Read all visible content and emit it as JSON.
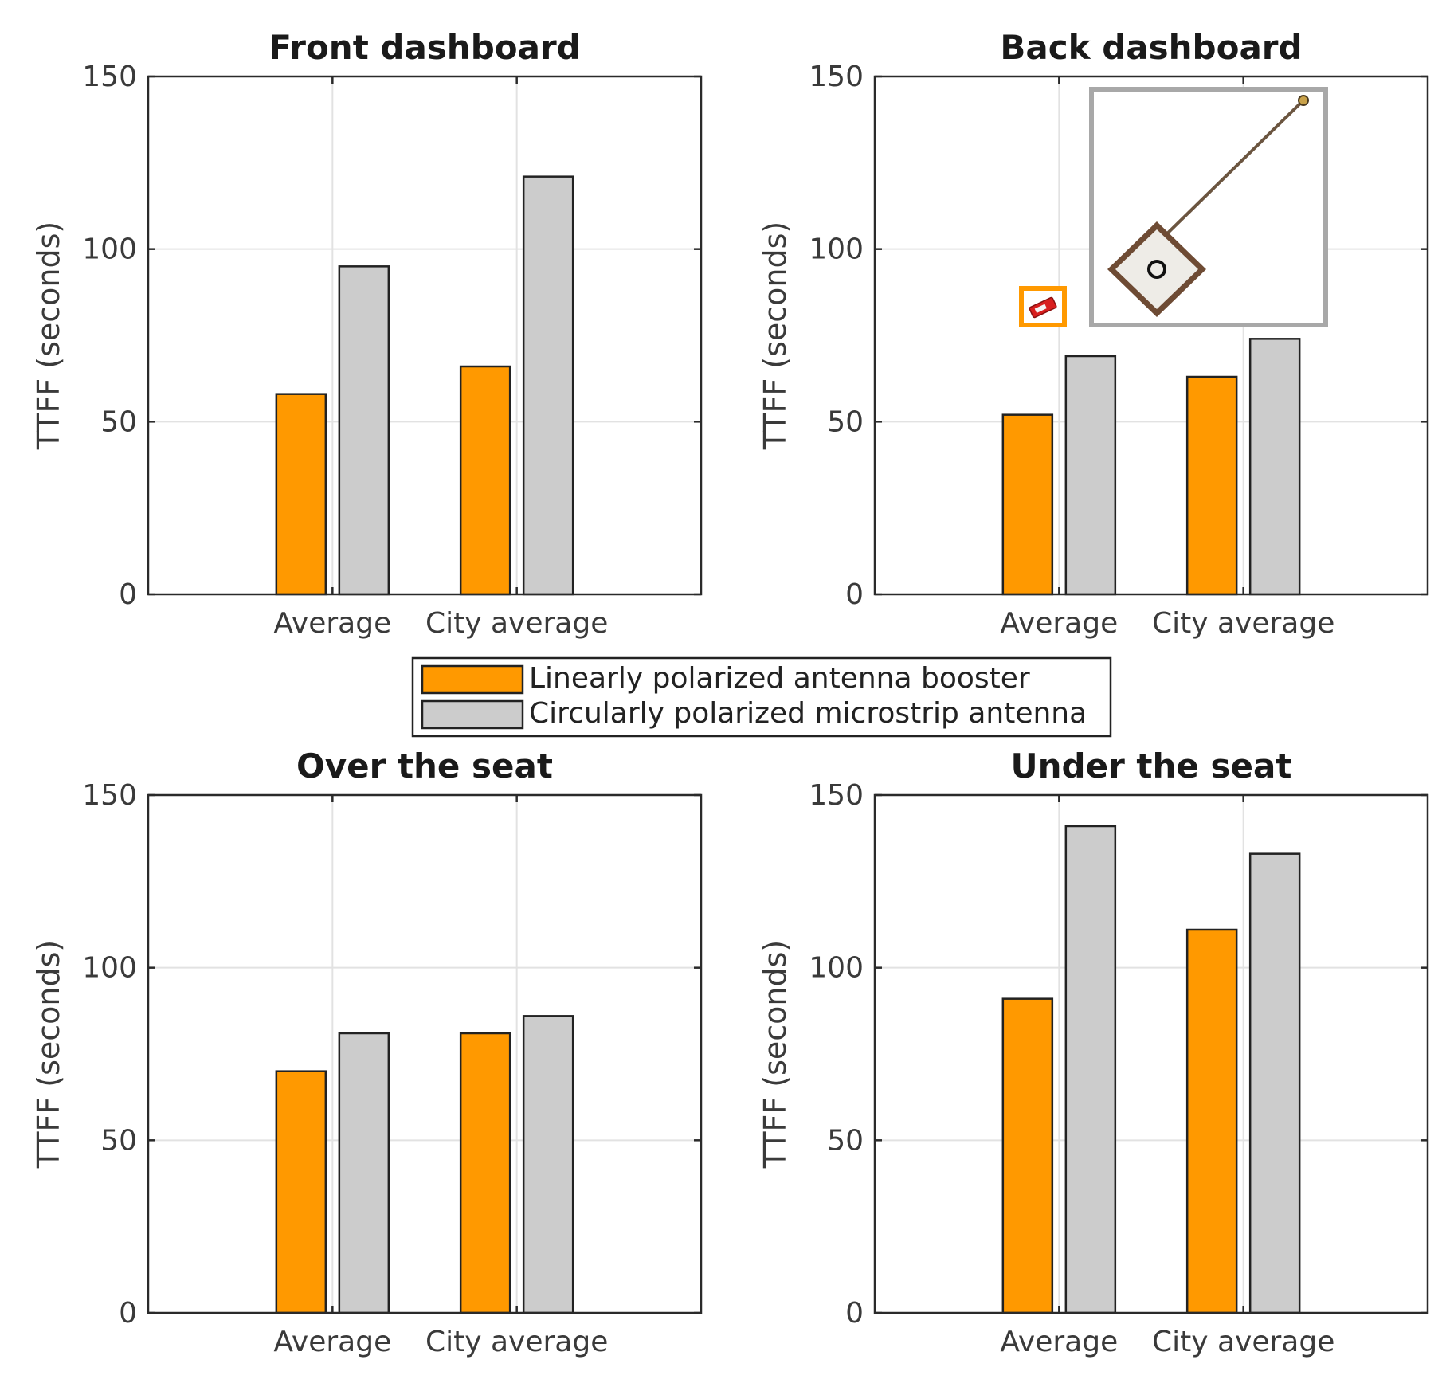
{
  "legend": {
    "entries": [
      {
        "label": "Linearly polarized antenna booster",
        "color": "#FF9900"
      },
      {
        "label": "Circularly polarized microstrip antenna",
        "color": "#CCCCCC"
      }
    ]
  },
  "inset_icons": [
    "antenna-booster-chip-icon",
    "patch-antenna-with-cable-icon"
  ],
  "chart_data": [
    {
      "type": "bar",
      "title": "Front dashboard",
      "xlabel": "",
      "ylabel": "TTFF (seconds)",
      "ylim": [
        0,
        150
      ],
      "yticks": [
        0,
        50,
        100,
        150
      ],
      "grid": true,
      "categories": [
        "Average",
        "City average"
      ],
      "series": [
        {
          "name": "Linearly polarized antenna booster",
          "values": [
            58,
            66
          ]
        },
        {
          "name": "Circularly polarized microstrip antenna",
          "values": [
            95,
            121
          ]
        }
      ]
    },
    {
      "type": "bar",
      "title": "Back dashboard",
      "xlabel": "",
      "ylabel": "TTFF (seconds)",
      "ylim": [
        0,
        150
      ],
      "yticks": [
        0,
        50,
        100,
        150
      ],
      "grid": true,
      "categories": [
        "Average",
        "City average"
      ],
      "series": [
        {
          "name": "Linearly polarized antenna booster",
          "values": [
            52,
            63
          ]
        },
        {
          "name": "Circularly polarized microstrip antenna",
          "values": [
            69,
            74
          ]
        }
      ]
    },
    {
      "type": "bar",
      "title": "Over the seat",
      "xlabel": "",
      "ylabel": "TTFF (seconds)",
      "ylim": [
        0,
        150
      ],
      "yticks": [
        0,
        50,
        100,
        150
      ],
      "grid": true,
      "categories": [
        "Average",
        "City average"
      ],
      "series": [
        {
          "name": "Linearly polarized antenna booster",
          "values": [
            70,
            81
          ]
        },
        {
          "name": "Circularly polarized microstrip antenna",
          "values": [
            81,
            86
          ]
        }
      ]
    },
    {
      "type": "bar",
      "title": "Under the seat",
      "xlabel": "",
      "ylabel": "TTFF (seconds)",
      "ylim": [
        0,
        150
      ],
      "yticks": [
        0,
        50,
        100,
        150
      ],
      "grid": true,
      "categories": [
        "Average",
        "City average"
      ],
      "series": [
        {
          "name": "Linearly polarized antenna booster",
          "values": [
            91,
            111
          ]
        },
        {
          "name": "Circularly polarized microstrip antenna",
          "values": [
            141,
            133
          ]
        }
      ]
    }
  ]
}
